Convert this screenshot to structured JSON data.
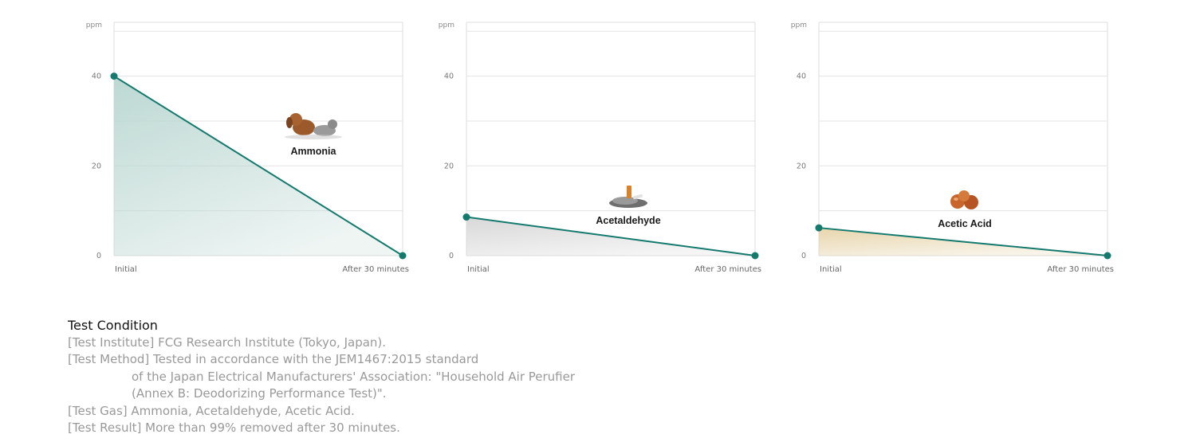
{
  "chart_data": [
    {
      "type": "line",
      "unit": "ppm",
      "categories": [
        "Initial",
        "After 30 minutes"
      ],
      "yticks": [
        "0",
        "20",
        "40"
      ],
      "ylim": [
        0,
        52
      ],
      "values": [
        40,
        0
      ],
      "annotation": "Ammonia",
      "icon": "dog-and-cat-icon",
      "fill_color": "#b9d6d0",
      "line_color": "#147a6e",
      "grid": true
    },
    {
      "type": "line",
      "unit": "ppm",
      "categories": [
        "Initial",
        "After 30 minutes"
      ],
      "yticks": [
        "0",
        "20",
        "40"
      ],
      "ylim": [
        0,
        52
      ],
      "values": [
        8.6,
        0
      ],
      "annotation": "Acetaldehyde",
      "icon": "cigarette-butts-icon",
      "fill_color": "#d6d6d6",
      "line_color": "#147a6e",
      "grid": true
    },
    {
      "type": "line",
      "unit": "ppm",
      "categories": [
        "Initial",
        "After 30 minutes"
      ],
      "yticks": [
        "0",
        "20",
        "40"
      ],
      "ylim": [
        0,
        52
      ],
      "values": [
        6.2,
        0
      ],
      "annotation": "Acetic Acid",
      "icon": "pickled-plums-icon",
      "fill_color": "#e6d3a8",
      "line_color": "#147a6e",
      "grid": true
    }
  ],
  "test_condition": {
    "heading": "Test Condition",
    "institute": "[Test Institute] FCG Research Institute (Tokyo, Japan).",
    "method_1": "[Test Method] Tested in accordance with the JEM1467:2015 standard",
    "method_2": "of the Japan Electrical Manufacturers' Association: \"Household Air Perufier",
    "method_3": "(Annex B: Deodorizing Performance Test)\".",
    "gas": "[Test Gas] Ammonia, Acetaldehyde, Acetic Acid.",
    "result": "[Test Result] More than 99% removed after 30 minutes."
  }
}
